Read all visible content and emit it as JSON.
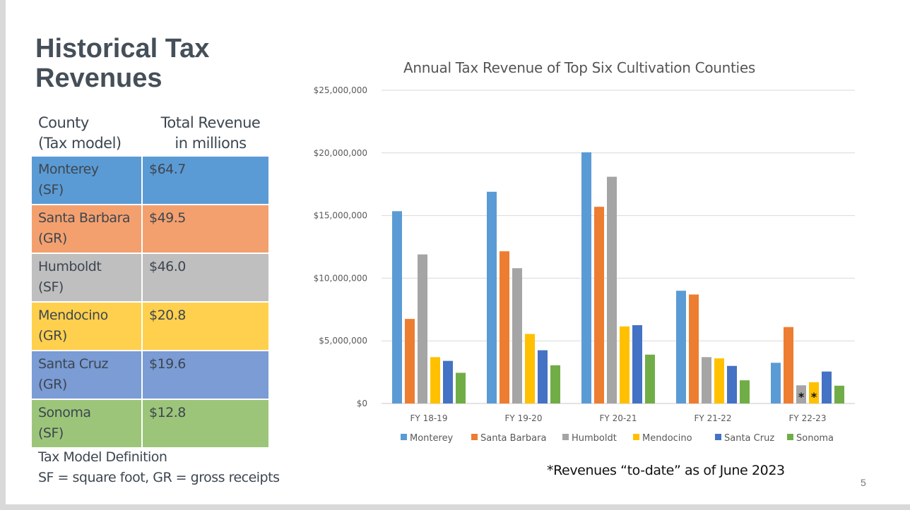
{
  "slide": {
    "title_line1": "Historical Tax",
    "title_line2": "Revenues",
    "page_number": "5",
    "footnote": "*Revenues “to-date” as of June 2023"
  },
  "table": {
    "header_col1_line1": "County",
    "header_col1_line2": "(Tax model)",
    "header_col2_line1": "Total Revenue",
    "header_col2_line2": "in millions",
    "rows": [
      {
        "county": "Monterey",
        "model": "(SF)",
        "total": "$64.7",
        "color": "#5b9bd5"
      },
      {
        "county": "Santa Barbara",
        "model": "(GR)",
        "total": "$49.5",
        "color": "#f4a06e"
      },
      {
        "county": "Humboldt",
        "model": "(SF)",
        "total": "$46.0",
        "color": "#bfbfbf"
      },
      {
        "county": "Mendocino",
        "model": "(GR)",
        "total": "$20.8",
        "color": "#ffd04d"
      },
      {
        "county": "Santa Cruz",
        "model": "(GR)",
        "total": "$19.6",
        "color": "#7b9cd4"
      },
      {
        "county": "Sonoma",
        "model": "(SF)",
        "total": "$12.8",
        "color": "#9cc57a"
      }
    ],
    "definition_title": "Tax Model Definition",
    "definition_text": "SF = square foot, GR = gross receipts"
  },
  "chart_data": {
    "type": "bar",
    "title": "Annual Tax Revenue of Top Six Cultivation Counties",
    "xlabel": "",
    "ylabel": "",
    "ylim": [
      0,
      25000000
    ],
    "yticks": [
      0,
      5000000,
      10000000,
      15000000,
      20000000,
      25000000
    ],
    "ytick_labels": [
      "$0",
      "$5,000,000",
      "$10,000,000",
      "$15,000,000",
      "$20,000,000",
      "$25,000,000"
    ],
    "grid": true,
    "legend_position": "bottom",
    "categories": [
      "FY 18-19",
      "FY 19-20",
      "FY 20-21",
      "FY 21-22",
      "FY 22-23"
    ],
    "series": [
      {
        "name": "Monterey",
        "color": "#5b9bd5",
        "values": [
          15350000,
          16900000,
          20050000,
          9000000,
          3250000
        ]
      },
      {
        "name": "Santa Barbara",
        "color": "#ed7d31",
        "values": [
          6750000,
          12150000,
          15700000,
          8700000,
          6100000
        ]
      },
      {
        "name": "Humboldt",
        "color": "#a5a5a5",
        "values": [
          11900000,
          10800000,
          18100000,
          3700000,
          1450000
        ]
      },
      {
        "name": "Mendocino",
        "color": "#ffc000",
        "values": [
          3700000,
          5550000,
          6150000,
          3600000,
          1700000
        ]
      },
      {
        "name": "Santa Cruz",
        "color": "#4472c4",
        "values": [
          3400000,
          4250000,
          6250000,
          3000000,
          2550000
        ]
      },
      {
        "name": "Sonoma",
        "color": "#70ad47",
        "values": [
          2450000,
          3050000,
          3900000,
          1850000,
          1420000
        ]
      }
    ],
    "annotations": [
      {
        "category": "FY 22-23",
        "series": "Humboldt",
        "text": "*"
      },
      {
        "category": "FY 22-23",
        "series": "Mendocino",
        "text": "*"
      }
    ]
  }
}
